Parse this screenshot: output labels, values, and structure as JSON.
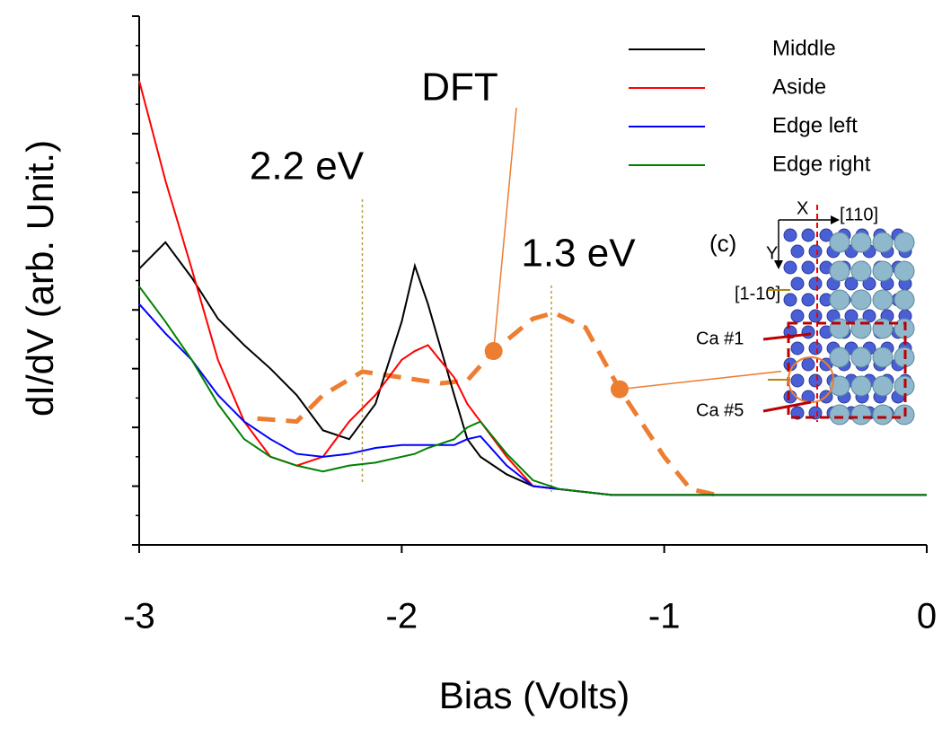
{
  "chart_data": {
    "type": "line",
    "xlabel": "Bias (Volts)",
    "ylabel": "dI/dV (arb. Unit.)",
    "x": [
      -3,
      -2.9,
      -2.8,
      -2.7,
      -2.6,
      -2.5,
      -2.4,
      -2.3,
      -2.2,
      -2.1,
      -2.0,
      -1.95,
      -1.9,
      -1.8,
      -1.75,
      -1.7,
      -1.6,
      -1.5,
      -1.4,
      -1.3,
      -1.2,
      -1.1,
      -1.0,
      -0.8,
      -0.6,
      -0.4,
      -0.2,
      0
    ],
    "series": [
      {
        "name": "Middle",
        "color": "#000000",
        "values": [
          4.7,
          5.15,
          4.55,
          3.85,
          3.4,
          3.0,
          2.55,
          1.95,
          1.8,
          2.4,
          3.8,
          4.75,
          4.1,
          2.55,
          1.8,
          1.5,
          1.2,
          1.0,
          0.95,
          0.9,
          0.85,
          0.85,
          0.85,
          0.85,
          0.85,
          0.85,
          0.85,
          0.85
        ]
      },
      {
        "name": "Aside",
        "color": "#ff0000",
        "values": [
          7.9,
          6.2,
          4.7,
          3.15,
          2.1,
          1.5,
          1.35,
          1.5,
          2.1,
          2.55,
          3.15,
          3.3,
          3.4,
          2.85,
          2.4,
          2.1,
          1.5,
          1.0,
          0.95,
          0.9,
          0.85,
          0.85,
          0.85,
          0.85,
          0.85,
          0.85,
          0.85,
          0.85
        ]
      },
      {
        "name": "Edge left",
        "color": "#0000ff",
        "values": [
          4.1,
          3.6,
          3.15,
          2.55,
          2.1,
          1.8,
          1.55,
          1.5,
          1.55,
          1.65,
          1.7,
          1.7,
          1.7,
          1.7,
          1.8,
          1.85,
          1.35,
          1.0,
          0.95,
          0.9,
          0.85,
          0.85,
          0.85,
          0.85,
          0.85,
          0.85,
          0.85,
          0.85
        ]
      },
      {
        "name": "Edge right",
        "color": "#008000",
        "values": [
          4.4,
          3.8,
          3.15,
          2.4,
          1.8,
          1.5,
          1.35,
          1.25,
          1.35,
          1.4,
          1.5,
          1.55,
          1.65,
          1.8,
          2.0,
          2.1,
          1.55,
          1.1,
          0.95,
          0.9,
          0.85,
          0.85,
          0.85,
          0.85,
          0.85,
          0.85,
          0.85,
          0.85
        ]
      }
    ],
    "dft": {
      "label": "DFT",
      "color": "#ed7d31",
      "x": [
        -2.55,
        -2.4,
        -2.3,
        -2.15,
        -2.0,
        -1.85,
        -1.75,
        -1.65,
        -1.5,
        -1.42,
        -1.3,
        -1.17,
        -1.0,
        -0.9,
        -0.8
      ],
      "values": [
        2.15,
        2.1,
        2.55,
        2.95,
        2.85,
        2.75,
        2.8,
        3.3,
        3.85,
        3.95,
        3.7,
        2.65,
        1.5,
        0.95,
        0.85
      ]
    },
    "annotations": [
      {
        "text": "2.2 eV",
        "x": -2.15
      },
      {
        "text": "1.3 eV",
        "x": -1.43
      }
    ],
    "xlim": [
      -3,
      0
    ],
    "xticks": [
      -3,
      -2,
      -1,
      0
    ],
    "ylim": [
      0,
      9
    ],
    "yticks": [
      0,
      1,
      2,
      3,
      4,
      5,
      6,
      7,
      8,
      9
    ],
    "legend": "upper right",
    "inset": {
      "panel": "(c)",
      "x_axis": "X",
      "y_axis": "Y",
      "dir_x": "[110]",
      "dir_y": "[1-10]",
      "site1": "Ca #1",
      "site5": "Ca #5"
    }
  }
}
